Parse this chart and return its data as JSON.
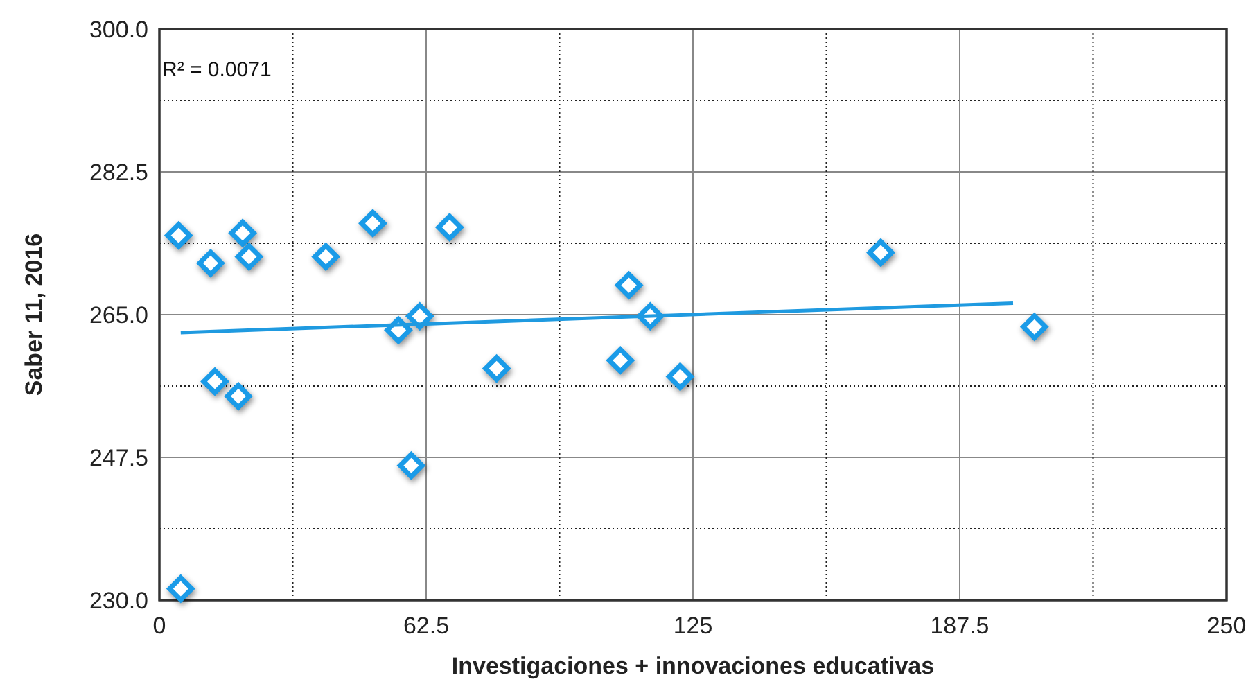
{
  "chart_data": {
    "type": "scatter",
    "xlabel": "Investigaciones + innovaciones educativas",
    "ylabel": "Saber 11, 2016",
    "annotations": [
      "R² = 0.0071"
    ],
    "xlim": [
      0,
      250
    ],
    "xticks": [
      0,
      62.5,
      125,
      187.5,
      250
    ],
    "ylim": [
      230,
      300
    ],
    "yticks": [
      {
        "value": 230,
        "label": "230.0"
      },
      {
        "value": 247.5,
        "label": "247.5"
      },
      {
        "value": 265,
        "label": "265.0"
      },
      {
        "value": 282.5,
        "label": "282.5"
      },
      {
        "value": 300,
        "label": "300.0"
      }
    ],
    "grid": true,
    "series": [
      {
        "marker": "diamond",
        "color": "#1a9be8",
        "x": [
          4.5,
          12,
          19.5,
          21,
          13,
          18.5,
          5,
          39,
          50,
          68,
          56,
          61,
          59,
          79,
          108,
          110,
          115,
          122,
          169,
          205
        ],
        "values": [
          274.7,
          271.3,
          275,
          272.1,
          256.8,
          255,
          231.4,
          272.1,
          276.2,
          275.7,
          263.1,
          264.8,
          246.5,
          258.4,
          259.4,
          268.6,
          264.8,
          257.4,
          272.6,
          263.5
        ]
      },
      {
        "type": "line",
        "color": "#1f9ae0",
        "x": [
          5,
          200
        ],
        "values": [
          262.8,
          266.4
        ]
      }
    ]
  }
}
